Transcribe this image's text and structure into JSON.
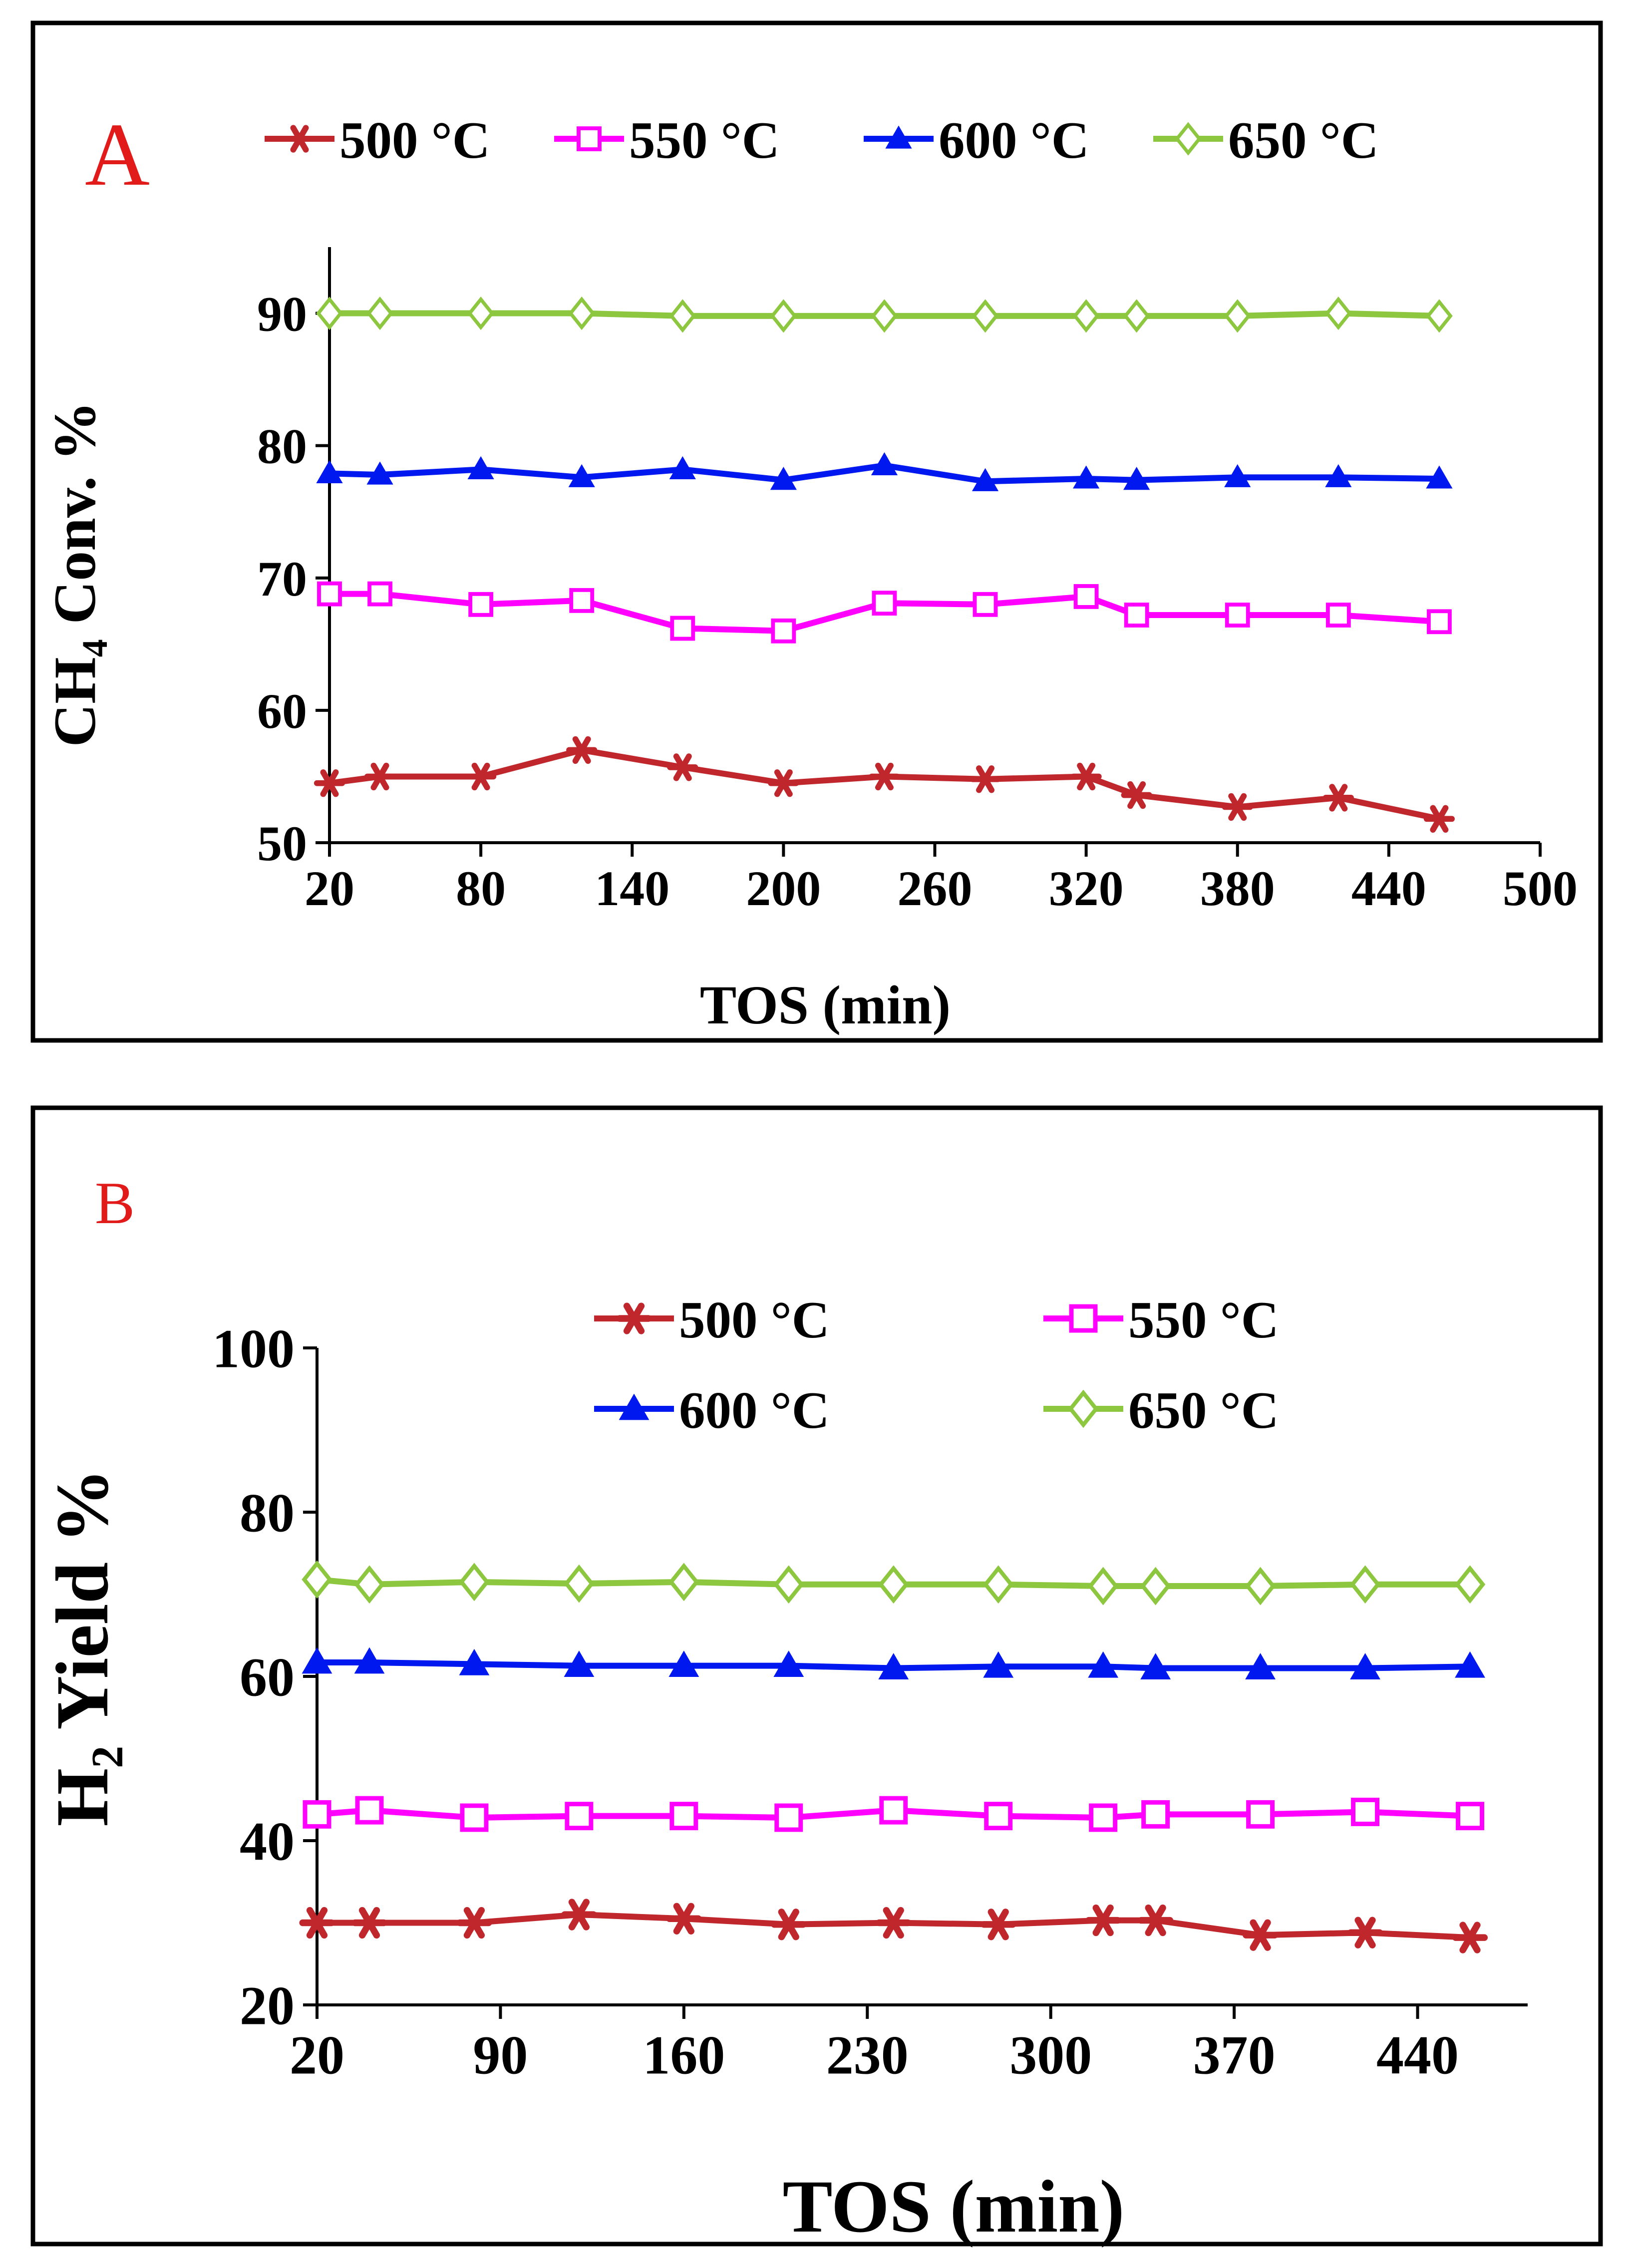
{
  "chart_data": [
    {
      "type": "line",
      "panel_label": "A",
      "title": "",
      "xlabel": "TOS (min)",
      "ylabel": "CH₄ Conv. %",
      "xlim": [
        20,
        500
      ],
      "ylim": [
        50,
        95
      ],
      "xticks": [
        "20",
        "80",
        "140",
        "200",
        "260",
        "320",
        "380",
        "440",
        "500"
      ],
      "yticks": [
        "50",
        "60",
        "70",
        "80",
        "90"
      ],
      "x": [
        20,
        40,
        80,
        120,
        160,
        200,
        240,
        280,
        320,
        340,
        380,
        420,
        460
      ],
      "legend_position": "top",
      "series": [
        {
          "name": "500 °C",
          "color": "#c0272d",
          "marker": "star",
          "values": [
            54.5,
            55.0,
            55.0,
            57.0,
            55.7,
            54.5,
            55.0,
            54.8,
            55.0,
            53.6,
            52.7,
            53.4,
            51.8
          ]
        },
        {
          "name": "550 °C",
          "color": "#ff00ff",
          "marker": "square",
          "values": [
            68.8,
            68.8,
            68.0,
            68.3,
            66.2,
            66.0,
            68.1,
            68.0,
            68.6,
            67.2,
            67.2,
            67.2,
            66.7
          ]
        },
        {
          "name": "600 °C",
          "color": "#0018f0",
          "marker": "triangle",
          "values": [
            77.9,
            77.8,
            78.2,
            77.6,
            78.2,
            77.4,
            78.5,
            77.3,
            77.5,
            77.4,
            77.6,
            77.6,
            77.5
          ]
        },
        {
          "name": "650 °C",
          "color": "#8dc63f",
          "marker": "diamond",
          "values": [
            90.0,
            90.0,
            90.0,
            90.0,
            89.8,
            89.8,
            89.8,
            89.8,
            89.8,
            89.8,
            89.8,
            90.0,
            89.8
          ]
        }
      ]
    },
    {
      "type": "line",
      "panel_label": "B",
      "title": "",
      "xlabel": "TOS (min)",
      "ylabel": "H₂ Yield %",
      "xlim": [
        20,
        482
      ],
      "ylim": [
        20,
        100
      ],
      "xticks": [
        "20",
        "90",
        "160",
        "230",
        "300",
        "370",
        "440"
      ],
      "yticks": [
        "20",
        "40",
        "60",
        "80",
        "100"
      ],
      "x": [
        20,
        40,
        80,
        120,
        160,
        200,
        240,
        280,
        320,
        340,
        380,
        420,
        460
      ],
      "legend_position": "top, 2 columns",
      "series": [
        {
          "name": "500 °C",
          "color": "#c0272d",
          "marker": "star",
          "values": [
            30.0,
            30.0,
            30.0,
            31.0,
            30.5,
            29.8,
            30.0,
            29.8,
            30.3,
            30.3,
            28.5,
            28.8,
            28.2
          ]
        },
        {
          "name": "550 °C",
          "color": "#ff00ff",
          "marker": "square",
          "values": [
            43.2,
            43.7,
            42.8,
            43.0,
            43.0,
            42.8,
            43.7,
            43.0,
            42.8,
            43.2,
            43.2,
            43.5,
            43.0
          ]
        },
        {
          "name": "600 °C",
          "color": "#0018f0",
          "marker": "triangle",
          "values": [
            61.7,
            61.7,
            61.5,
            61.3,
            61.3,
            61.3,
            61.0,
            61.2,
            61.2,
            61.0,
            61.0,
            61.0,
            61.2
          ]
        },
        {
          "name": "650 °C",
          "color": "#8dc63f",
          "marker": "diamond",
          "values": [
            71.8,
            71.2,
            71.5,
            71.3,
            71.5,
            71.2,
            71.2,
            71.2,
            71.0,
            71.0,
            71.0,
            71.2,
            71.2
          ]
        }
      ]
    }
  ]
}
